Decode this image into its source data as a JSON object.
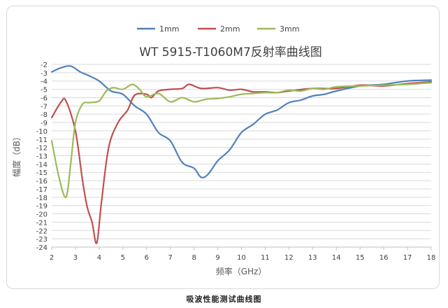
{
  "caption": "吸波性能测试曲线图",
  "chart_data": {
    "type": "line",
    "title": "WT 5915-T1060M7反射率曲线图",
    "xlabel": "频率（GHz）",
    "ylabel": "幅度（dB）",
    "xlim": [
      2,
      18
    ],
    "ylim": [
      -24,
      -2
    ],
    "xticks": [
      2,
      3,
      4,
      5,
      6,
      7,
      8,
      9,
      10,
      11,
      12,
      13,
      14,
      15,
      16,
      17,
      18
    ],
    "yticks": [
      -2,
      -3,
      -4,
      -5,
      -6,
      -7,
      -8,
      -9,
      -10,
      -11,
      -12,
      -13,
      -14,
      -15,
      -16,
      -17,
      -18,
      -19,
      -20,
      -21,
      -22,
      -23,
      -24
    ],
    "grid": "horizontal",
    "legend_position": "top",
    "series": [
      {
        "name": "1mm",
        "color": "#4f81bd",
        "points": [
          [
            2,
            -2.9
          ],
          [
            2.4,
            -2.4
          ],
          [
            2.8,
            -2.2
          ],
          [
            3.2,
            -2.9
          ],
          [
            3.6,
            -3.4
          ],
          [
            4.0,
            -4.0
          ],
          [
            4.5,
            -5.2
          ],
          [
            5.0,
            -5.6
          ],
          [
            5.5,
            -7.0
          ],
          [
            6.0,
            -8.0
          ],
          [
            6.5,
            -10.2
          ],
          [
            7.0,
            -11.2
          ],
          [
            7.5,
            -13.8
          ],
          [
            8.0,
            -14.5
          ],
          [
            8.3,
            -15.6
          ],
          [
            8.6,
            -15.2
          ],
          [
            9.0,
            -13.6
          ],
          [
            9.5,
            -12.3
          ],
          [
            10.0,
            -10.2
          ],
          [
            10.5,
            -9.2
          ],
          [
            11.0,
            -8.0
          ],
          [
            11.5,
            -7.5
          ],
          [
            12.0,
            -6.6
          ],
          [
            12.5,
            -6.3
          ],
          [
            13.0,
            -5.8
          ],
          [
            13.5,
            -5.6
          ],
          [
            14.0,
            -5.2
          ],
          [
            15.0,
            -4.6
          ],
          [
            16.0,
            -4.4
          ],
          [
            17.0,
            -4.0
          ],
          [
            18.0,
            -3.9
          ]
        ]
      },
      {
        "name": "2mm",
        "color": "#c0504d",
        "points": [
          [
            2,
            -8.4
          ],
          [
            2.4,
            -6.5
          ],
          [
            2.6,
            -6.4
          ],
          [
            3.0,
            -10.0
          ],
          [
            3.3,
            -16.0
          ],
          [
            3.5,
            -19.2
          ],
          [
            3.7,
            -21.0
          ],
          [
            3.9,
            -23.5
          ],
          [
            4.1,
            -18.5
          ],
          [
            4.4,
            -12.0
          ],
          [
            4.8,
            -9.0
          ],
          [
            5.2,
            -7.5
          ],
          [
            5.5,
            -5.7
          ],
          [
            6.0,
            -5.6
          ],
          [
            6.2,
            -6.0
          ],
          [
            6.5,
            -5.2
          ],
          [
            7.0,
            -5.0
          ],
          [
            7.5,
            -4.9
          ],
          [
            7.8,
            -4.4
          ],
          [
            8.3,
            -4.9
          ],
          [
            9.0,
            -4.8
          ],
          [
            9.5,
            -5.1
          ],
          [
            10.0,
            -5.0
          ],
          [
            10.5,
            -5.3
          ],
          [
            11.0,
            -5.3
          ],
          [
            11.5,
            -5.4
          ],
          [
            12.0,
            -5.2
          ],
          [
            13.0,
            -4.9
          ],
          [
            14.0,
            -4.9
          ],
          [
            15.0,
            -4.5
          ],
          [
            16.0,
            -4.6
          ],
          [
            17.0,
            -4.3
          ],
          [
            18.0,
            -4.1
          ]
        ]
      },
      {
        "name": "3mm",
        "color": "#9bbb59",
        "points": [
          [
            2,
            -11.2
          ],
          [
            2.3,
            -15.5
          ],
          [
            2.6,
            -18.0
          ],
          [
            2.8,
            -14.0
          ],
          [
            3.0,
            -9.0
          ],
          [
            3.3,
            -6.8
          ],
          [
            3.6,
            -6.6
          ],
          [
            4.0,
            -6.4
          ],
          [
            4.3,
            -5.2
          ],
          [
            4.6,
            -4.8
          ],
          [
            5.0,
            -5.0
          ],
          [
            5.4,
            -4.4
          ],
          [
            5.7,
            -5.0
          ],
          [
            6.0,
            -5.9
          ],
          [
            6.5,
            -5.5
          ],
          [
            7.0,
            -6.5
          ],
          [
            7.5,
            -6.0
          ],
          [
            8.0,
            -6.5
          ],
          [
            8.5,
            -6.2
          ],
          [
            9.0,
            -6.1
          ],
          [
            9.5,
            -5.9
          ],
          [
            10.0,
            -5.6
          ],
          [
            10.5,
            -5.5
          ],
          [
            11.0,
            -5.4
          ],
          [
            11.5,
            -5.4
          ],
          [
            12.0,
            -5.1
          ],
          [
            12.5,
            -5.2
          ],
          [
            13.0,
            -4.9
          ],
          [
            13.5,
            -5.0
          ],
          [
            14.0,
            -4.7
          ],
          [
            15.0,
            -4.6
          ],
          [
            16.0,
            -4.5
          ],
          [
            17.0,
            -4.4
          ],
          [
            18.0,
            -4.2
          ]
        ]
      }
    ]
  }
}
